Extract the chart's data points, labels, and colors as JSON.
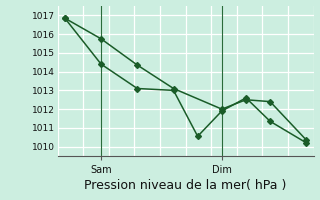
{
  "xlabel": "Pression niveau de la mer( hPa )",
  "background_color": "#cceee0",
  "grid_color": "#aaddcc",
  "line_color": "#1a5c28",
  "vline_color": "#2a6b3a",
  "ylim": [
    1009.5,
    1017.5
  ],
  "xlim": [
    -0.3,
    10.3
  ],
  "yticks": [
    1010,
    1011,
    1012,
    1013,
    1014,
    1015,
    1016,
    1017
  ],
  "xtick_positions": [
    1.5,
    6.5
  ],
  "xtick_labels": [
    "Sam",
    "Dim"
  ],
  "vline_positions": [
    1.5,
    6.5
  ],
  "line1_x": [
    0,
    1.5,
    3.0,
    4.5,
    6.5,
    7.5,
    8.5,
    10.0
  ],
  "line1_y": [
    1016.85,
    1015.75,
    1014.35,
    1013.1,
    1012.0,
    1012.5,
    1012.4,
    1010.35
  ],
  "line2_x": [
    0,
    1.5,
    3.0,
    4.5,
    5.5,
    6.5,
    7.5,
    8.5,
    10.0
  ],
  "line2_y": [
    1016.85,
    1014.4,
    1013.1,
    1013.0,
    1010.55,
    1011.9,
    1012.6,
    1011.35,
    1010.2
  ],
  "marker": "D",
  "marker_size": 3,
  "linewidth": 1.1,
  "xlabel_fontsize": 9,
  "ytick_fontsize": 6.5,
  "xtick_fontsize": 7
}
